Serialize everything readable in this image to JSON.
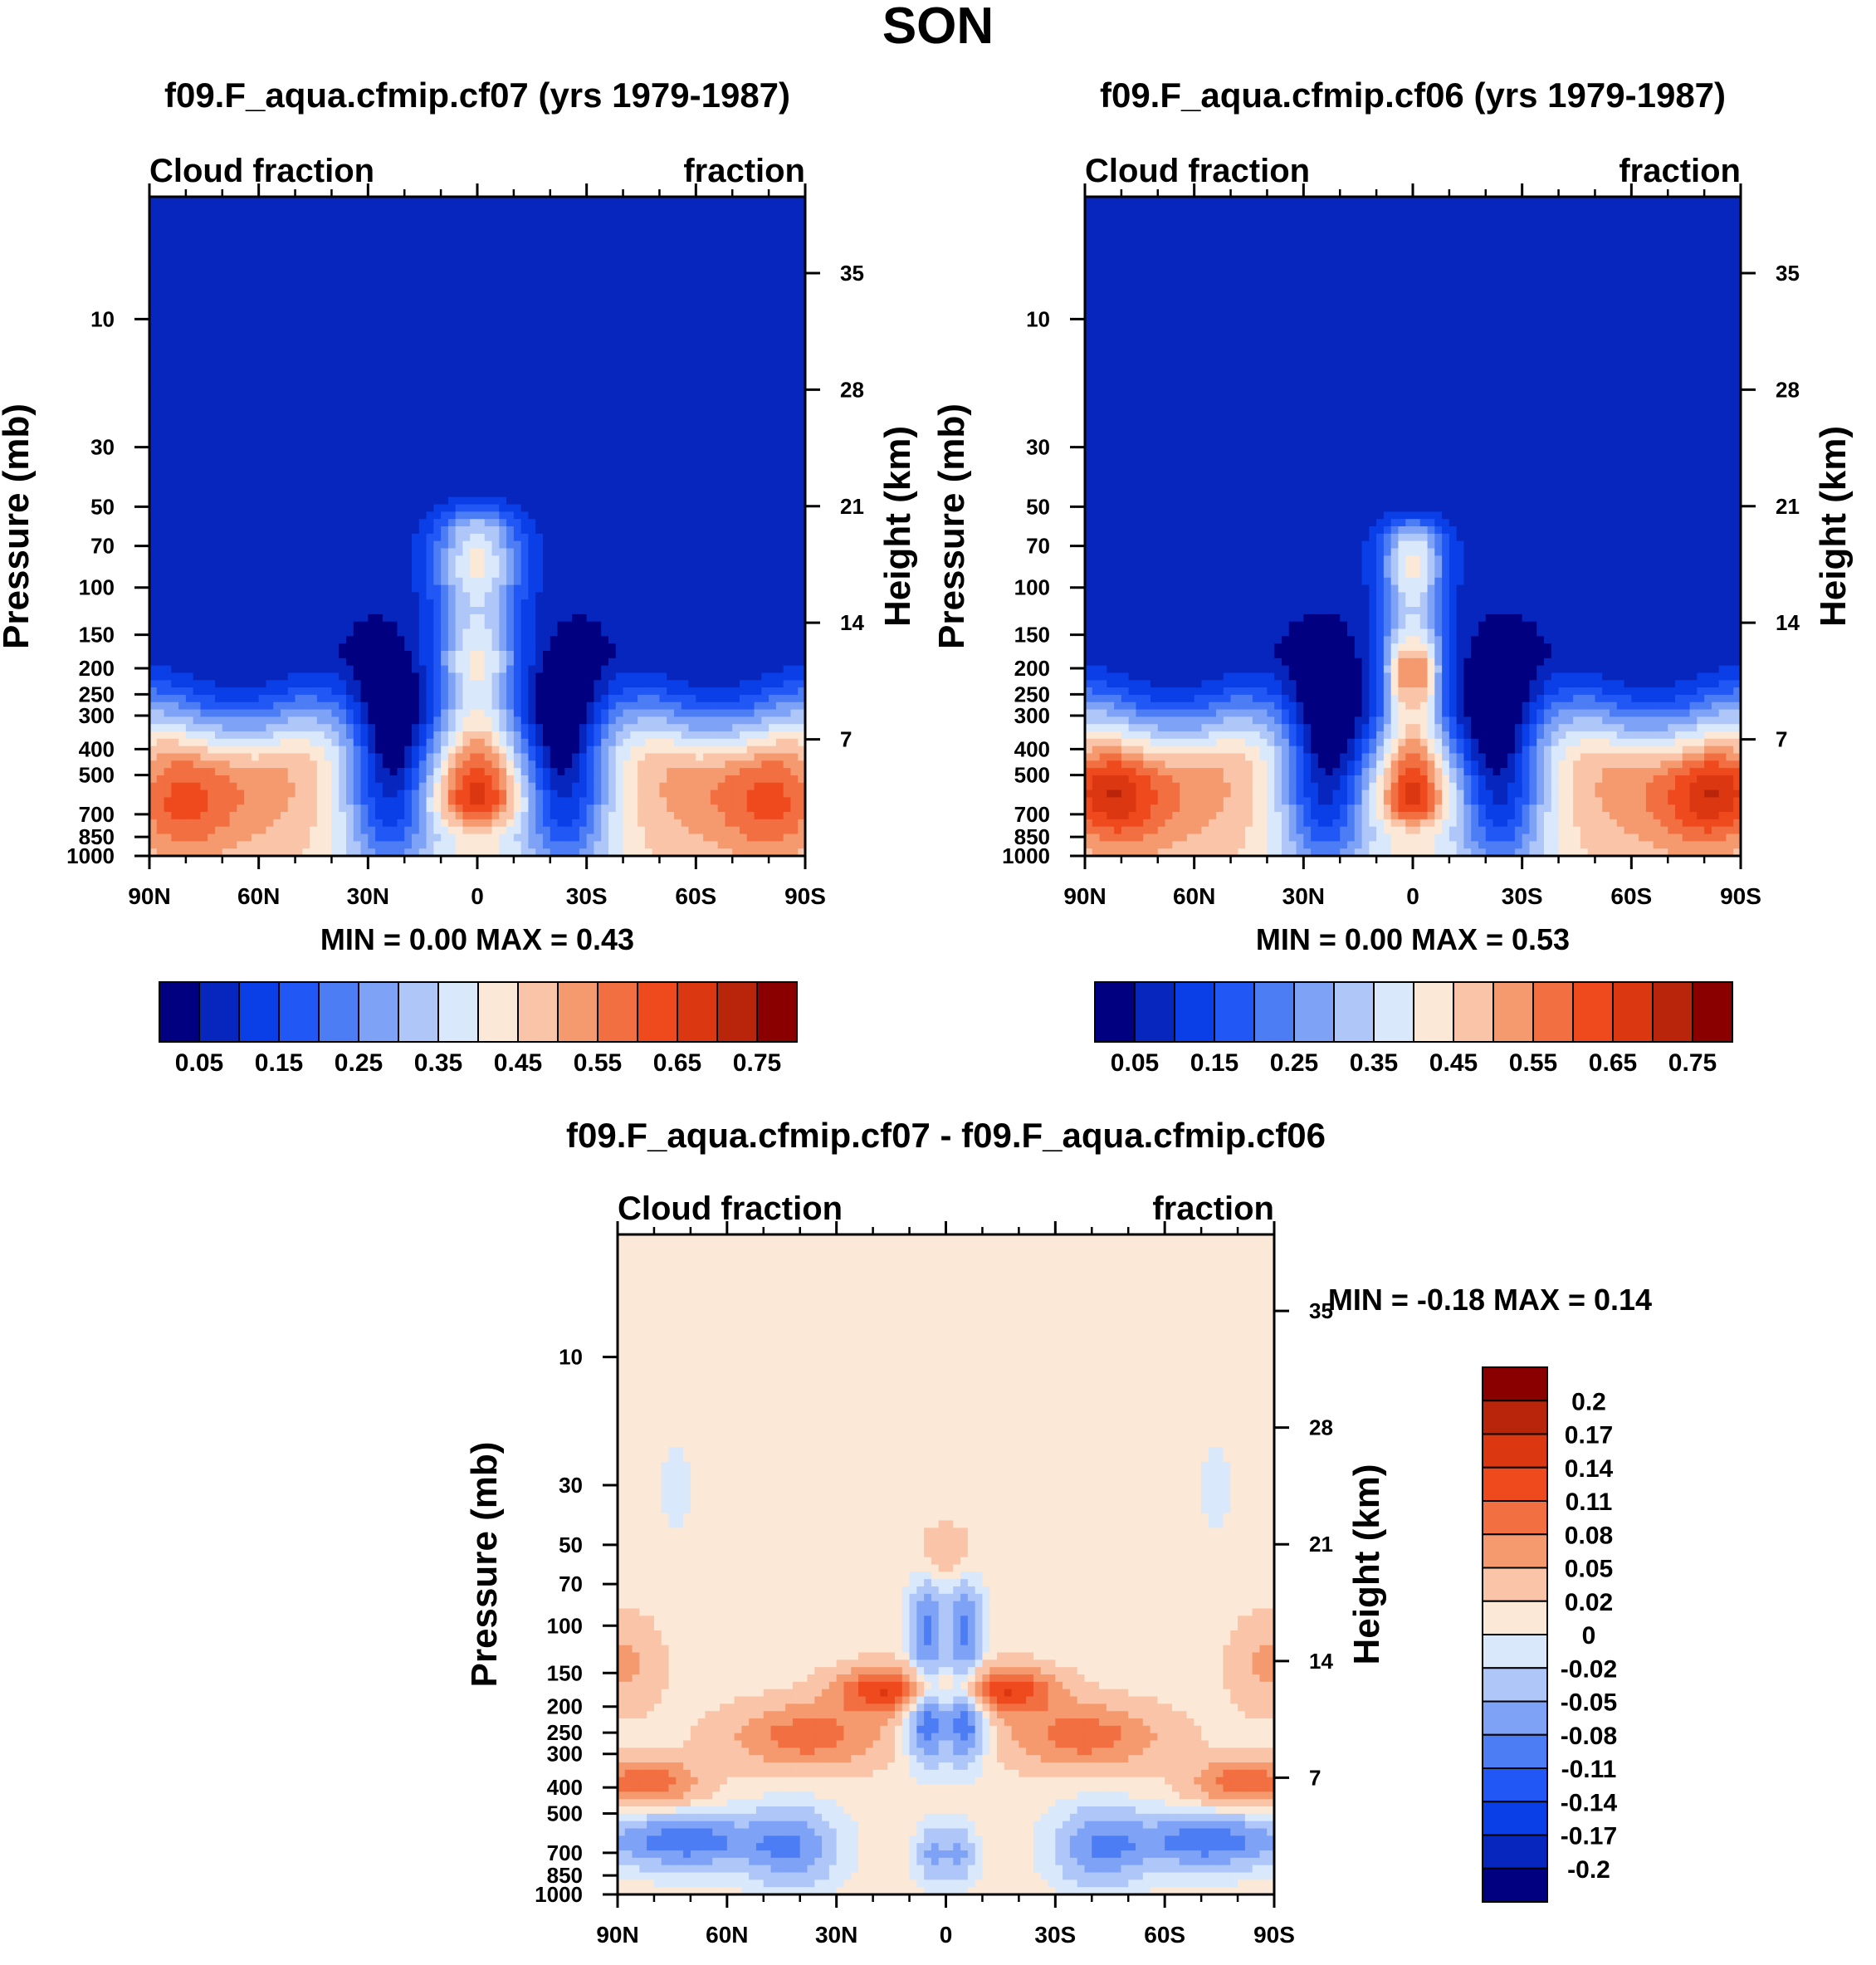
{
  "figure": {
    "title": "SON"
  },
  "colors": {
    "seq": [
      "#000080",
      "#0626be",
      "#0a3ee6",
      "#2158f5",
      "#4d7df5",
      "#7ea2f5",
      "#aec6f8",
      "#d9e8fb",
      "#fce8d6",
      "#f9c4a8",
      "#f59a6e",
      "#f26f42",
      "#ef4a1e",
      "#db3711",
      "#b9250b",
      "#8a0000"
    ],
    "diff": [
      "#000080",
      "#0626be",
      "#0a3ee6",
      "#2158f5",
      "#4d7df5",
      "#7ea2f5",
      "#aec6f8",
      "#d9e8fb",
      "#fce8d6",
      "#f9c4a8",
      "#f59a6e",
      "#f26f42",
      "#ef4a1e",
      "#db3711",
      "#b9250b",
      "#8a0000"
    ]
  },
  "chart_data": [
    {
      "id": "p1",
      "type": "contour",
      "title": "f09.F_aqua.cfmip.cf07 (yrs 1979-1987)",
      "left_label": "Cloud fraction",
      "right_label": "fraction",
      "xlabel": "",
      "ylabel": "Pressure (mb)",
      "y2label": "Height (km)",
      "x_ticks": [
        "90N",
        "60N",
        "30N",
        "0",
        "30S",
        "60S",
        "90S"
      ],
      "x_values": [
        90,
        60,
        30,
        0,
        -30,
        -60,
        -90
      ],
      "y_ticks": [
        "10",
        "30",
        "50",
        "70",
        "100",
        "150",
        "200",
        "250",
        "300",
        "400",
        "500",
        "700",
        "850",
        "1000"
      ],
      "y_values": [
        10,
        30,
        50,
        70,
        100,
        150,
        200,
        250,
        300,
        400,
        500,
        700,
        850,
        1000
      ],
      "y_range_mb": [
        3.5,
        1000
      ],
      "y2_ticks": [
        "35",
        "28",
        "21",
        "14",
        "7"
      ],
      "y2_values_km": [
        35,
        28,
        21,
        14,
        7
      ],
      "stats": "MIN =   0.00  MAX =   0.43",
      "min": 0.0,
      "max": 0.43,
      "colorbar": {
        "labels": [
          "0.05",
          "0.15",
          "0.25",
          "0.35",
          "0.45",
          "0.55",
          "0.65",
          "0.75"
        ],
        "levels": [
          0.05,
          0.1,
          0.15,
          0.2,
          0.25,
          0.3,
          0.35,
          0.4,
          0.45,
          0.5,
          0.55,
          0.6,
          0.65,
          0.7,
          0.75
        ]
      }
    },
    {
      "id": "p2",
      "type": "contour",
      "title": "f09.F_aqua.cfmip.cf06 (yrs 1979-1987)",
      "left_label": "Cloud fraction",
      "right_label": "fraction",
      "xlabel": "",
      "ylabel": "Pressure (mb)",
      "y2label": "Height (km)",
      "x_ticks": [
        "90N",
        "60N",
        "30N",
        "0",
        "30S",
        "60S",
        "90S"
      ],
      "x_values": [
        90,
        60,
        30,
        0,
        -30,
        -60,
        -90
      ],
      "y_ticks": [
        "10",
        "30",
        "50",
        "70",
        "100",
        "150",
        "200",
        "250",
        "300",
        "400",
        "500",
        "700",
        "850",
        "1000"
      ],
      "y_values": [
        10,
        30,
        50,
        70,
        100,
        150,
        200,
        250,
        300,
        400,
        500,
        700,
        850,
        1000
      ],
      "y_range_mb": [
        3.5,
        1000
      ],
      "y2_ticks": [
        "35",
        "28",
        "21",
        "14",
        "7"
      ],
      "y2_values_km": [
        35,
        28,
        21,
        14,
        7
      ],
      "stats": "MIN =   0.00  MAX =   0.53",
      "min": 0.0,
      "max": 0.53,
      "colorbar": {
        "labels": [
          "0.05",
          "0.15",
          "0.25",
          "0.35",
          "0.45",
          "0.55",
          "0.65",
          "0.75"
        ],
        "levels": [
          0.05,
          0.1,
          0.15,
          0.2,
          0.25,
          0.3,
          0.35,
          0.4,
          0.45,
          0.5,
          0.55,
          0.6,
          0.65,
          0.7,
          0.75
        ]
      }
    },
    {
      "id": "p3",
      "type": "contour",
      "title": "f09.F_aqua.cfmip.cf07 - f09.F_aqua.cfmip.cf06",
      "left_label": "Cloud fraction",
      "right_label": "fraction",
      "xlabel": "",
      "ylabel": "Pressure (mb)",
      "y2label": "Height (km)",
      "x_ticks": [
        "90N",
        "60N",
        "30N",
        "0",
        "30S",
        "60S",
        "90S"
      ],
      "x_values": [
        90,
        60,
        30,
        0,
        -30,
        -60,
        -90
      ],
      "y_ticks": [
        "10",
        "30",
        "50",
        "70",
        "100",
        "150",
        "200",
        "250",
        "300",
        "400",
        "500",
        "700",
        "850",
        "1000"
      ],
      "y_values": [
        10,
        30,
        50,
        70,
        100,
        150,
        200,
        250,
        300,
        400,
        500,
        700,
        850,
        1000
      ],
      "y_range_mb": [
        3.5,
        1000
      ],
      "y2_ticks": [
        "35",
        "28",
        "21",
        "14",
        "7"
      ],
      "y2_values_km": [
        35,
        28,
        21,
        14,
        7
      ],
      "stats": "MIN =  -0.18  MAX =   0.14",
      "min": -0.18,
      "max": 0.14,
      "colorbar": {
        "labels": [
          "0.2",
          "0.17",
          "0.14",
          "0.11",
          "0.08",
          "0.05",
          "0.02",
          "0",
          "-0.02",
          "-0.05",
          "-0.08",
          "-0.11",
          "-0.14",
          "-0.17",
          "-0.2"
        ],
        "levels": [
          0.2,
          0.17,
          0.14,
          0.11,
          0.08,
          0.05,
          0.02,
          0,
          -0.02,
          -0.05,
          -0.08,
          -0.11,
          -0.14,
          -0.17,
          -0.2
        ]
      }
    }
  ]
}
